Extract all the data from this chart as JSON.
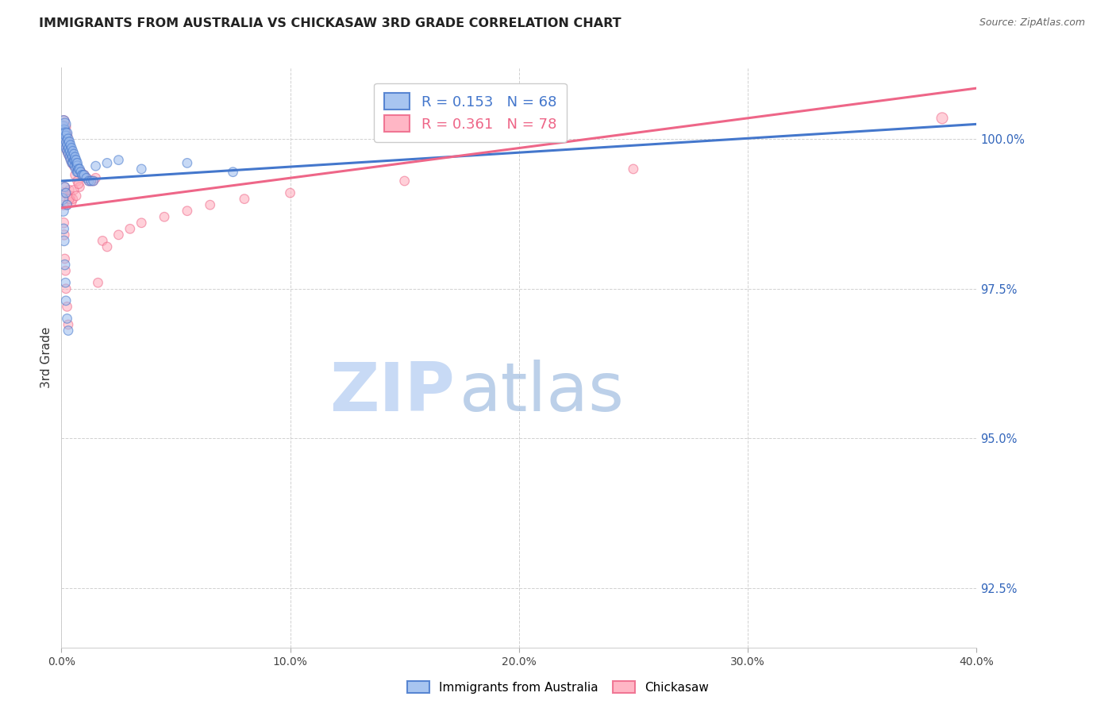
{
  "title": "IMMIGRANTS FROM AUSTRALIA VS CHICKASAW 3RD GRADE CORRELATION CHART",
  "source": "Source: ZipAtlas.com",
  "ylabel": "3rd Grade",
  "xmin": 0.0,
  "xmax": 40.0,
  "ymin": 91.5,
  "ymax": 101.2,
  "ytick_values": [
    92.5,
    95.0,
    97.5,
    100.0
  ],
  "ytick_labels": [
    "92.5%",
    "95.0%",
    "97.5%",
    "100.0%"
  ],
  "xtick_values": [
    0,
    10,
    20,
    30,
    40
  ],
  "xtick_labels": [
    "0.0%",
    "10.0%",
    "20.0%",
    "30.0%",
    "40.0%"
  ],
  "legend1_label": "R = 0.153   N = 68",
  "legend2_label": "R = 0.361   N = 78",
  "blue_fill": "#99bbee",
  "blue_edge": "#4477cc",
  "pink_fill": "#ffaabb",
  "pink_edge": "#ee6688",
  "blue_line_color": "#4477cc",
  "pink_line_color": "#ee6688",
  "blue_line": [
    0.0,
    40.0,
    99.3,
    100.25
  ],
  "pink_line": [
    0.0,
    40.0,
    98.85,
    100.85
  ],
  "blue_x": [
    0.05,
    0.08,
    0.1,
    0.12,
    0.15,
    0.15,
    0.18,
    0.2,
    0.2,
    0.22,
    0.25,
    0.25,
    0.28,
    0.3,
    0.3,
    0.32,
    0.35,
    0.35,
    0.38,
    0.4,
    0.4,
    0.42,
    0.45,
    0.45,
    0.48,
    0.5,
    0.5,
    0.52,
    0.55,
    0.55,
    0.58,
    0.6,
    0.6,
    0.62,
    0.65,
    0.65,
    0.68,
    0.7,
    0.7,
    0.72,
    0.75,
    0.8,
    0.85,
    0.9,
    0.95,
    1.0,
    1.1,
    1.2,
    1.3,
    1.4,
    0.05,
    0.08,
    0.1,
    0.12,
    0.15,
    0.18,
    0.2,
    0.25,
    0.3,
    0.15,
    0.2,
    0.25,
    1.5,
    2.0,
    2.5,
    3.5,
    5.5,
    7.5
  ],
  "blue_y": [
    100.2,
    100.1,
    100.3,
    100.15,
    100.25,
    100.0,
    100.1,
    99.9,
    100.05,
    99.85,
    99.95,
    100.1,
    99.8,
    99.9,
    100.0,
    99.75,
    99.85,
    99.95,
    99.7,
    99.8,
    99.9,
    99.65,
    99.75,
    99.85,
    99.6,
    99.7,
    99.8,
    99.6,
    99.65,
    99.75,
    99.55,
    99.65,
    99.7,
    99.5,
    99.6,
    99.65,
    99.45,
    99.55,
    99.6,
    99.45,
    99.5,
    99.5,
    99.45,
    99.4,
    99.4,
    99.4,
    99.35,
    99.3,
    99.3,
    99.3,
    99.0,
    98.8,
    98.5,
    98.3,
    97.9,
    97.6,
    97.3,
    97.0,
    96.8,
    99.2,
    99.1,
    98.9,
    99.55,
    99.6,
    99.65,
    99.5,
    99.6,
    99.45
  ],
  "pink_x": [
    0.05,
    0.08,
    0.1,
    0.12,
    0.15,
    0.15,
    0.18,
    0.2,
    0.2,
    0.22,
    0.25,
    0.25,
    0.28,
    0.3,
    0.3,
    0.32,
    0.35,
    0.38,
    0.4,
    0.4,
    0.42,
    0.45,
    0.48,
    0.5,
    0.5,
    0.55,
    0.55,
    0.6,
    0.65,
    0.7,
    0.75,
    0.8,
    0.85,
    0.9,
    0.95,
    1.0,
    1.1,
    1.2,
    1.3,
    1.4,
    1.5,
    0.05,
    0.08,
    0.1,
    0.12,
    0.15,
    0.18,
    0.2,
    0.25,
    0.3,
    0.35,
    0.4,
    0.45,
    0.5,
    0.15,
    0.2,
    0.25,
    0.6,
    0.7,
    0.8,
    1.8,
    2.0,
    2.5,
    3.0,
    3.5,
    4.5,
    5.5,
    6.5,
    8.0,
    10.0,
    15.0,
    25.0,
    38.5,
    0.35,
    0.55,
    0.65,
    0.75,
    1.6
  ],
  "pink_y": [
    100.2,
    100.1,
    100.3,
    100.15,
    100.2,
    100.05,
    100.1,
    99.95,
    100.0,
    99.85,
    99.9,
    100.05,
    99.8,
    99.85,
    99.95,
    99.75,
    99.8,
    99.7,
    99.75,
    99.8,
    99.65,
    99.7,
    99.6,
    99.65,
    99.7,
    99.55,
    99.65,
    99.6,
    99.55,
    99.5,
    99.5,
    99.45,
    99.45,
    99.4,
    99.4,
    99.4,
    99.35,
    99.3,
    99.3,
    99.3,
    99.35,
    99.1,
    98.9,
    98.6,
    98.4,
    98.0,
    97.8,
    97.5,
    97.2,
    96.9,
    99.15,
    99.05,
    98.95,
    99.0,
    99.2,
    99.1,
    98.9,
    99.4,
    99.3,
    99.2,
    98.3,
    98.2,
    98.4,
    98.5,
    98.6,
    98.7,
    98.8,
    98.9,
    99.0,
    99.1,
    99.3,
    99.5,
    100.35,
    99.0,
    99.15,
    99.05,
    99.25,
    97.6
  ],
  "blue_sizes": [
    120,
    100,
    100,
    90,
    110,
    90,
    90,
    100,
    80,
    90,
    100,
    80,
    90,
    100,
    80,
    80,
    90,
    80,
    80,
    90,
    70,
    80,
    80,
    70,
    80,
    80,
    70,
    80,
    70,
    70,
    70,
    80,
    70,
    70,
    70,
    70,
    70,
    80,
    70,
    70,
    70,
    70,
    70,
    70,
    70,
    70,
    70,
    70,
    70,
    70,
    100,
    90,
    80,
    80,
    80,
    70,
    70,
    70,
    70,
    70,
    70,
    70,
    70,
    70,
    70,
    70,
    70,
    70
  ],
  "pink_sizes": [
    120,
    100,
    100,
    90,
    110,
    80,
    90,
    100,
    80,
    90,
    100,
    80,
    90,
    100,
    80,
    80,
    90,
    80,
    80,
    90,
    70,
    80,
    80,
    70,
    80,
    70,
    70,
    80,
    70,
    70,
    70,
    80,
    70,
    70,
    70,
    70,
    70,
    70,
    70,
    70,
    70,
    90,
    80,
    80,
    80,
    70,
    70,
    70,
    70,
    70,
    70,
    70,
    70,
    70,
    70,
    70,
    70,
    70,
    70,
    70,
    70,
    70,
    70,
    70,
    70,
    70,
    70,
    70,
    70,
    70,
    70,
    70,
    100,
    70,
    70,
    70,
    70,
    70
  ],
  "grid_color": "#cccccc",
  "title_color": "#222222",
  "source_color": "#666666",
  "ytick_color": "#3366bb",
  "xtick_color": "#444444",
  "ylabel_color": "#333333",
  "watermark_zip_color": "#c8daf5",
  "watermark_atlas_color": "#a0bce0"
}
